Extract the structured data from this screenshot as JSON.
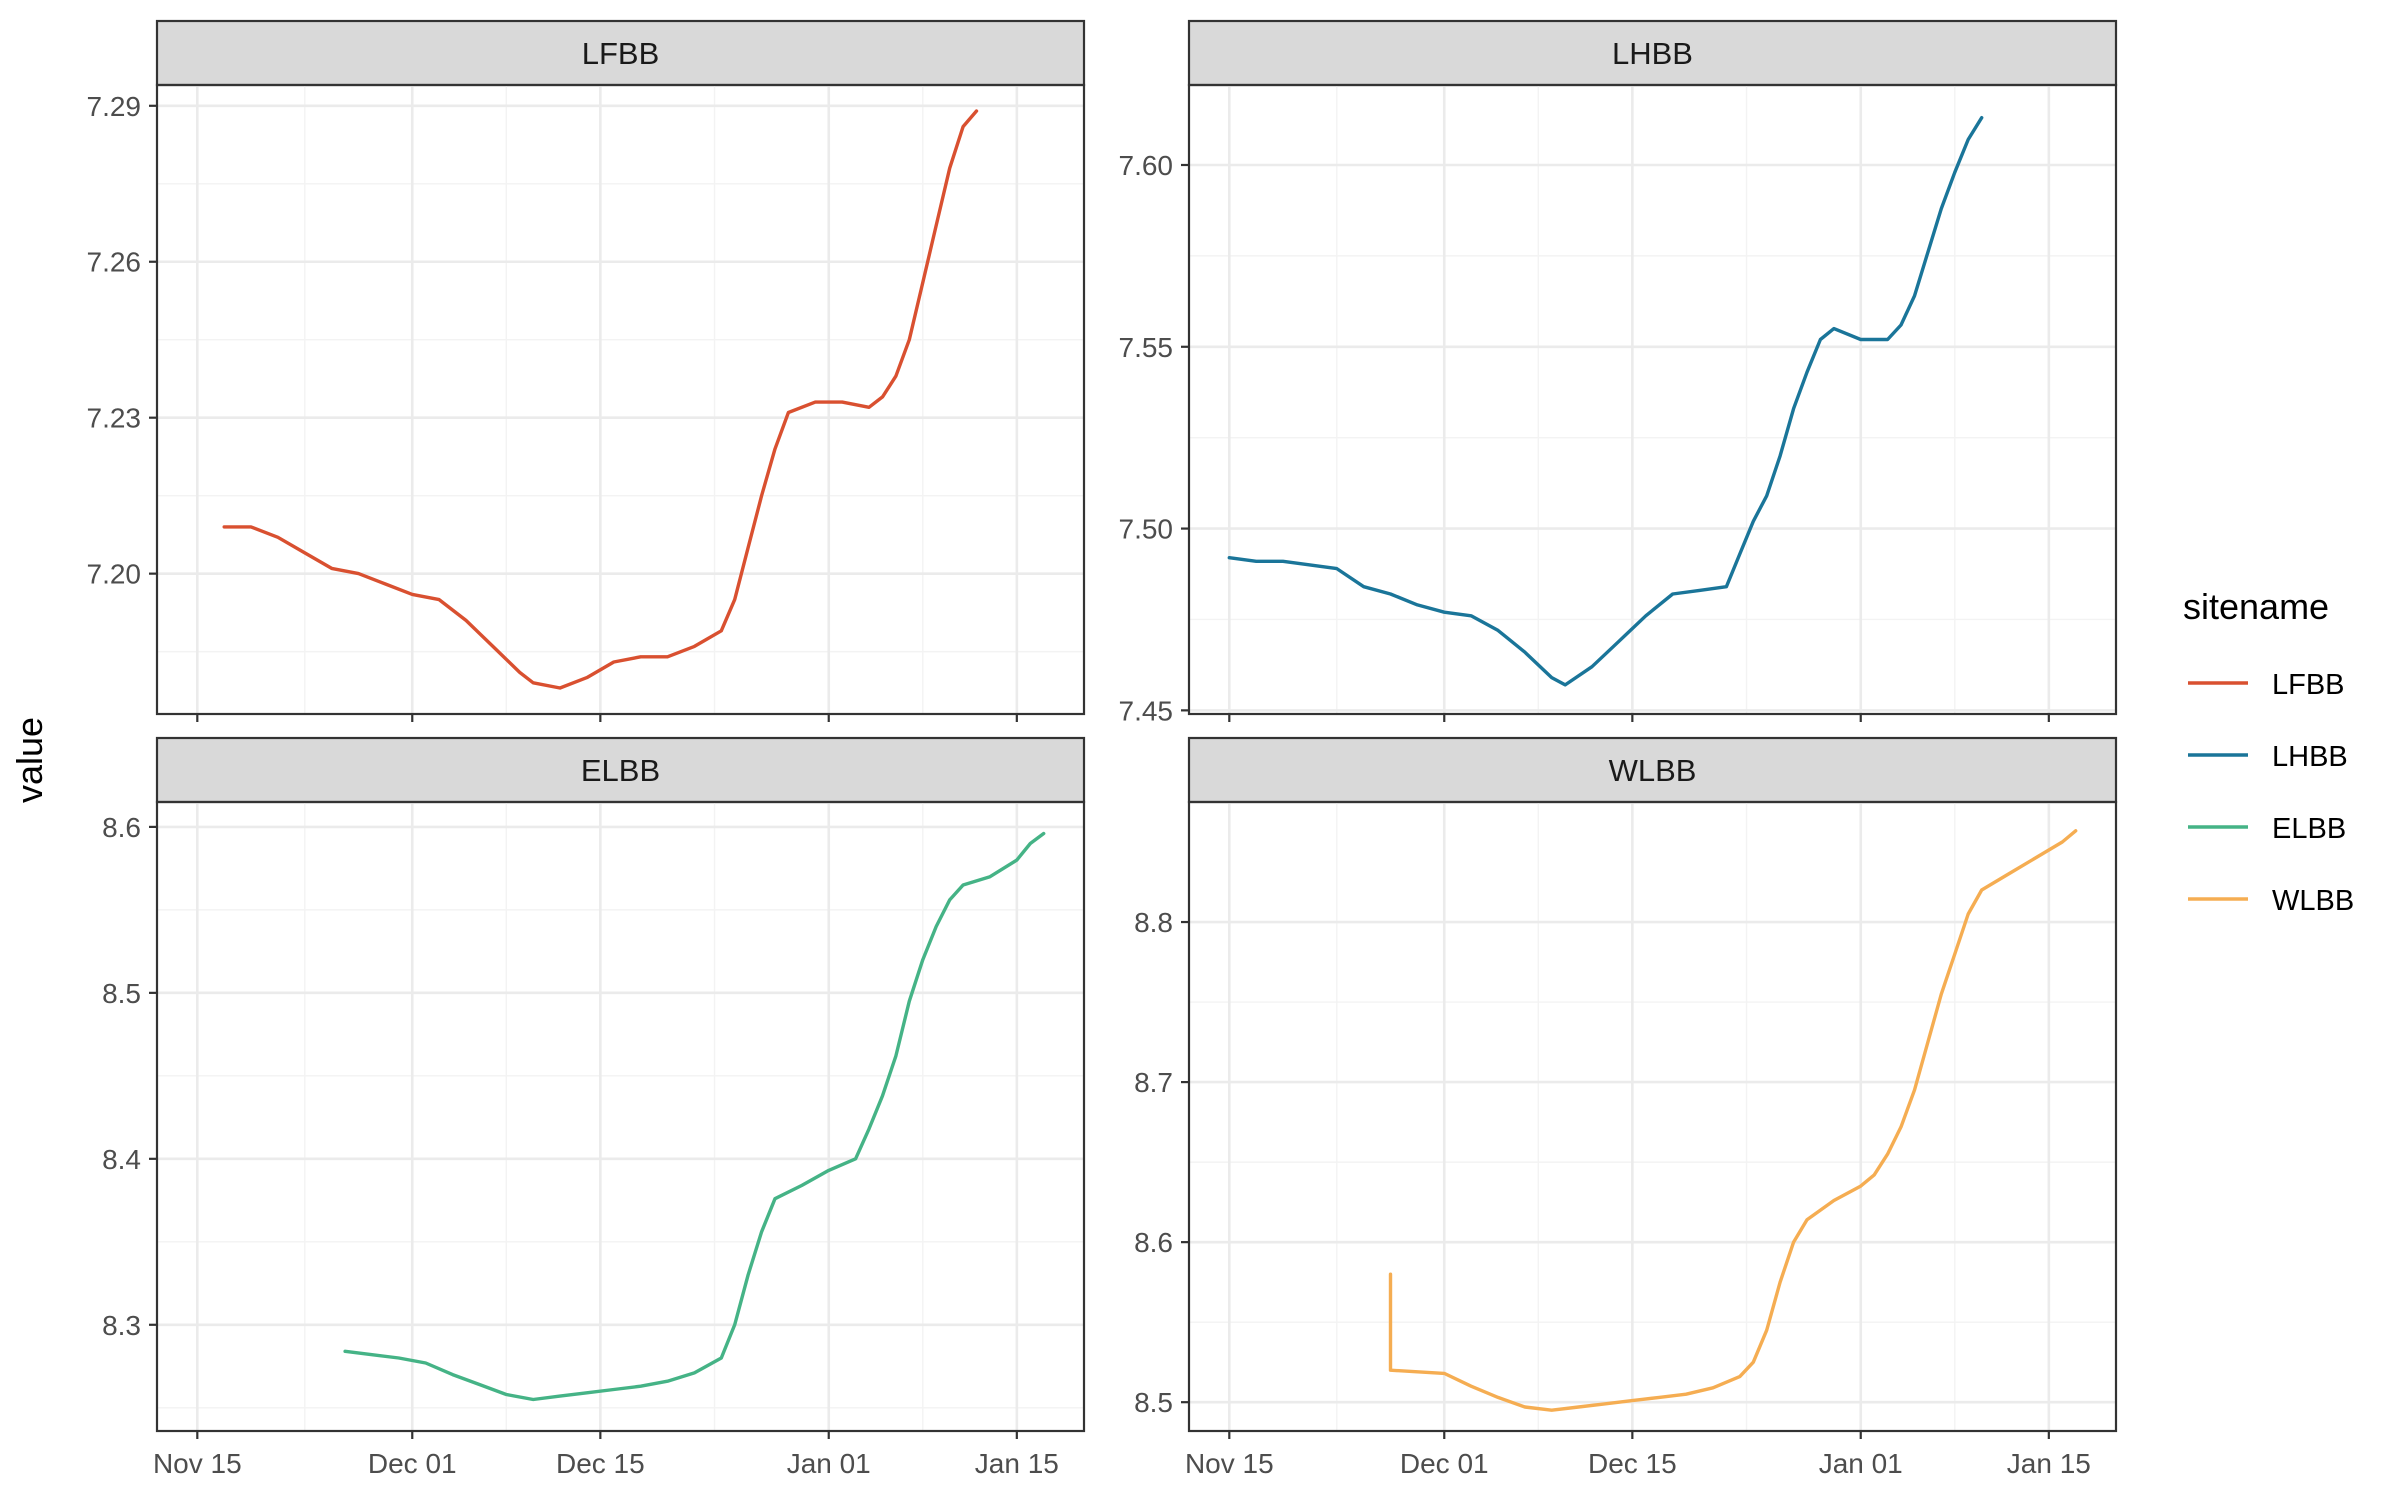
{
  "chart_data": {
    "type": "line",
    "ylabel": "value",
    "legend": {
      "title": "sitename",
      "position": "right",
      "entries": [
        {
          "name": "LFBB",
          "color": "#d95030"
        },
        {
          "name": "LHBB",
          "color": "#1a7599"
        },
        {
          "name": "ELBB",
          "color": "#45b386"
        },
        {
          "name": "WLBB",
          "color": "#f5ad52"
        }
      ]
    },
    "grid": true,
    "x_ticks": [
      "Nov 15",
      "Dec 01",
      "Dec 15",
      "Jan 01",
      "Jan 15"
    ],
    "x_tick_dates": [
      "2021-11-15",
      "2021-12-01",
      "2021-12-15",
      "2022-01-01",
      "2022-01-15"
    ],
    "xlim": [
      "2021-11-12",
      "2022-01-20"
    ],
    "panels": [
      {
        "title": "LFBB",
        "color": "#d95030",
        "ylim": [
          7.173,
          7.294
        ],
        "y_ticks": [
          "7.20",
          "7.23",
          "7.26",
          "7.29"
        ],
        "points": [
          [
            "2021-11-17",
            7.209
          ],
          [
            "2021-11-19",
            7.209
          ],
          [
            "2021-11-21",
            7.207
          ],
          [
            "2021-11-23",
            7.204
          ],
          [
            "2021-11-25",
            7.201
          ],
          [
            "2021-11-27",
            7.2
          ],
          [
            "2021-11-29",
            7.198
          ],
          [
            "2021-12-01",
            7.196
          ],
          [
            "2021-12-03",
            7.195
          ],
          [
            "2021-12-05",
            7.191
          ],
          [
            "2021-12-07",
            7.186
          ],
          [
            "2021-12-09",
            7.181
          ],
          [
            "2021-12-10",
            7.179
          ],
          [
            "2021-12-12",
            7.178
          ],
          [
            "2021-12-14",
            7.18
          ],
          [
            "2021-12-16",
            7.183
          ],
          [
            "2021-12-18",
            7.184
          ],
          [
            "2021-12-20",
            7.184
          ],
          [
            "2021-12-22",
            7.186
          ],
          [
            "2021-12-24",
            7.189
          ],
          [
            "2021-12-25",
            7.195
          ],
          [
            "2021-12-26",
            7.205
          ],
          [
            "2021-12-27",
            7.215
          ],
          [
            "2021-12-28",
            7.224
          ],
          [
            "2021-12-29",
            7.231
          ],
          [
            "2021-12-31",
            7.233
          ],
          [
            "2022-01-02",
            7.233
          ],
          [
            "2022-01-04",
            7.232
          ],
          [
            "2022-01-05",
            7.234
          ],
          [
            "2022-01-06",
            7.238
          ],
          [
            "2022-01-07",
            7.245
          ],
          [
            "2022-01-08",
            7.256
          ],
          [
            "2022-01-09",
            7.267
          ],
          [
            "2022-01-10",
            7.278
          ],
          [
            "2022-01-11",
            7.286
          ],
          [
            "2022-01-12",
            7.289
          ]
        ]
      },
      {
        "title": "LHBB",
        "color": "#1a7599",
        "ylim": [
          7.449,
          7.622
        ],
        "y_ticks": [
          "7.45",
          "7.50",
          "7.55",
          "7.60"
        ],
        "points": [
          [
            "2021-11-15",
            7.492
          ],
          [
            "2021-11-17",
            7.491
          ],
          [
            "2021-11-19",
            7.491
          ],
          [
            "2021-11-21",
            7.49
          ],
          [
            "2021-11-23",
            7.489
          ],
          [
            "2021-11-25",
            7.484
          ],
          [
            "2021-11-27",
            7.482
          ],
          [
            "2021-11-29",
            7.479
          ],
          [
            "2021-12-01",
            7.477
          ],
          [
            "2021-12-03",
            7.476
          ],
          [
            "2021-12-05",
            7.472
          ],
          [
            "2021-12-07",
            7.466
          ],
          [
            "2021-12-09",
            7.459
          ],
          [
            "2021-12-10",
            7.457
          ],
          [
            "2021-12-12",
            7.462
          ],
          [
            "2021-12-14",
            7.469
          ],
          [
            "2021-12-16",
            7.476
          ],
          [
            "2021-12-18",
            7.482
          ],
          [
            "2021-12-20",
            7.483
          ],
          [
            "2021-12-22",
            7.484
          ],
          [
            "2021-12-23",
            7.493
          ],
          [
            "2021-12-24",
            7.502
          ],
          [
            "2021-12-25",
            7.509
          ],
          [
            "2021-12-26",
            7.52
          ],
          [
            "2021-12-27",
            7.533
          ],
          [
            "2021-12-28",
            7.543
          ],
          [
            "2021-12-29",
            7.552
          ],
          [
            "2021-12-30",
            7.555
          ],
          [
            "2022-01-01",
            7.552
          ],
          [
            "2022-01-03",
            7.552
          ],
          [
            "2022-01-04",
            7.556
          ],
          [
            "2022-01-05",
            7.564
          ],
          [
            "2022-01-06",
            7.576
          ],
          [
            "2022-01-07",
            7.588
          ],
          [
            "2022-01-08",
            7.598
          ],
          [
            "2022-01-09",
            7.607
          ],
          [
            "2022-01-10",
            7.613
          ]
        ]
      },
      {
        "title": "ELBB",
        "color": "#45b386",
        "ylim": [
          8.236,
          8.615
        ],
        "y_ticks": [
          "8.3",
          "8.4",
          "8.5",
          "8.6"
        ],
        "points": [
          [
            "2021-11-26",
            8.284
          ],
          [
            "2021-11-28",
            8.282
          ],
          [
            "2021-11-30",
            8.28
          ],
          [
            "2021-12-02",
            8.277
          ],
          [
            "2021-12-04",
            8.27
          ],
          [
            "2021-12-06",
            8.264
          ],
          [
            "2021-12-08",
            8.258
          ],
          [
            "2021-12-10",
            8.255
          ],
          [
            "2021-12-12",
            8.257
          ],
          [
            "2021-12-14",
            8.259
          ],
          [
            "2021-12-16",
            8.261
          ],
          [
            "2021-12-18",
            8.263
          ],
          [
            "2021-12-20",
            8.266
          ],
          [
            "2021-12-22",
            8.271
          ],
          [
            "2021-12-24",
            8.28
          ],
          [
            "2021-12-25",
            8.3
          ],
          [
            "2021-12-26",
            8.33
          ],
          [
            "2021-12-27",
            8.356
          ],
          [
            "2021-12-28",
            8.376
          ],
          [
            "2021-12-30",
            8.384
          ],
          [
            "2022-01-01",
            8.393
          ],
          [
            "2022-01-03",
            8.4
          ],
          [
            "2022-01-04",
            8.418
          ],
          [
            "2022-01-05",
            8.438
          ],
          [
            "2022-01-06",
            8.462
          ],
          [
            "2022-01-07",
            8.495
          ],
          [
            "2022-01-08",
            8.52
          ],
          [
            "2022-01-09",
            8.54
          ],
          [
            "2022-01-10",
            8.556
          ],
          [
            "2022-01-11",
            8.565
          ],
          [
            "2022-01-13",
            8.57
          ],
          [
            "2022-01-15",
            8.58
          ],
          [
            "2022-01-16",
            8.59
          ],
          [
            "2022-01-17",
            8.596
          ]
        ]
      },
      {
        "title": "WLBB",
        "color": "#f5ad52",
        "ylim": [
          8.482,
          8.875
        ],
        "y_ticks": [
          "8.5",
          "8.6",
          "8.7",
          "8.8"
        ],
        "points": [
          [
            "2021-11-27",
            8.58
          ],
          [
            "2021-11-27",
            8.52
          ],
          [
            "2021-11-29",
            8.519
          ],
          [
            "2021-12-01",
            8.518
          ],
          [
            "2021-12-03",
            8.51
          ],
          [
            "2021-12-05",
            8.503
          ],
          [
            "2021-12-07",
            8.497
          ],
          [
            "2021-12-09",
            8.495
          ],
          [
            "2021-12-11",
            8.497
          ],
          [
            "2021-12-13",
            8.499
          ],
          [
            "2021-12-15",
            8.501
          ],
          [
            "2021-12-17",
            8.503
          ],
          [
            "2021-12-19",
            8.505
          ],
          [
            "2021-12-21",
            8.509
          ],
          [
            "2021-12-23",
            8.516
          ],
          [
            "2021-12-24",
            8.525
          ],
          [
            "2021-12-25",
            8.545
          ],
          [
            "2021-12-26",
            8.575
          ],
          [
            "2021-12-27",
            8.6
          ],
          [
            "2021-12-28",
            8.614
          ],
          [
            "2021-12-30",
            8.626
          ],
          [
            "2022-01-01",
            8.635
          ],
          [
            "2022-01-02",
            8.642
          ],
          [
            "2022-01-03",
            8.655
          ],
          [
            "2022-01-04",
            8.672
          ],
          [
            "2022-01-05",
            8.695
          ],
          [
            "2022-01-06",
            8.725
          ],
          [
            "2022-01-07",
            8.755
          ],
          [
            "2022-01-08",
            8.78
          ],
          [
            "2022-01-09",
            8.805
          ],
          [
            "2022-01-10",
            8.82
          ],
          [
            "2022-01-12",
            8.83
          ],
          [
            "2022-01-14",
            8.84
          ],
          [
            "2022-01-16",
            8.85
          ],
          [
            "2022-01-17",
            8.857
          ]
        ]
      }
    ]
  }
}
